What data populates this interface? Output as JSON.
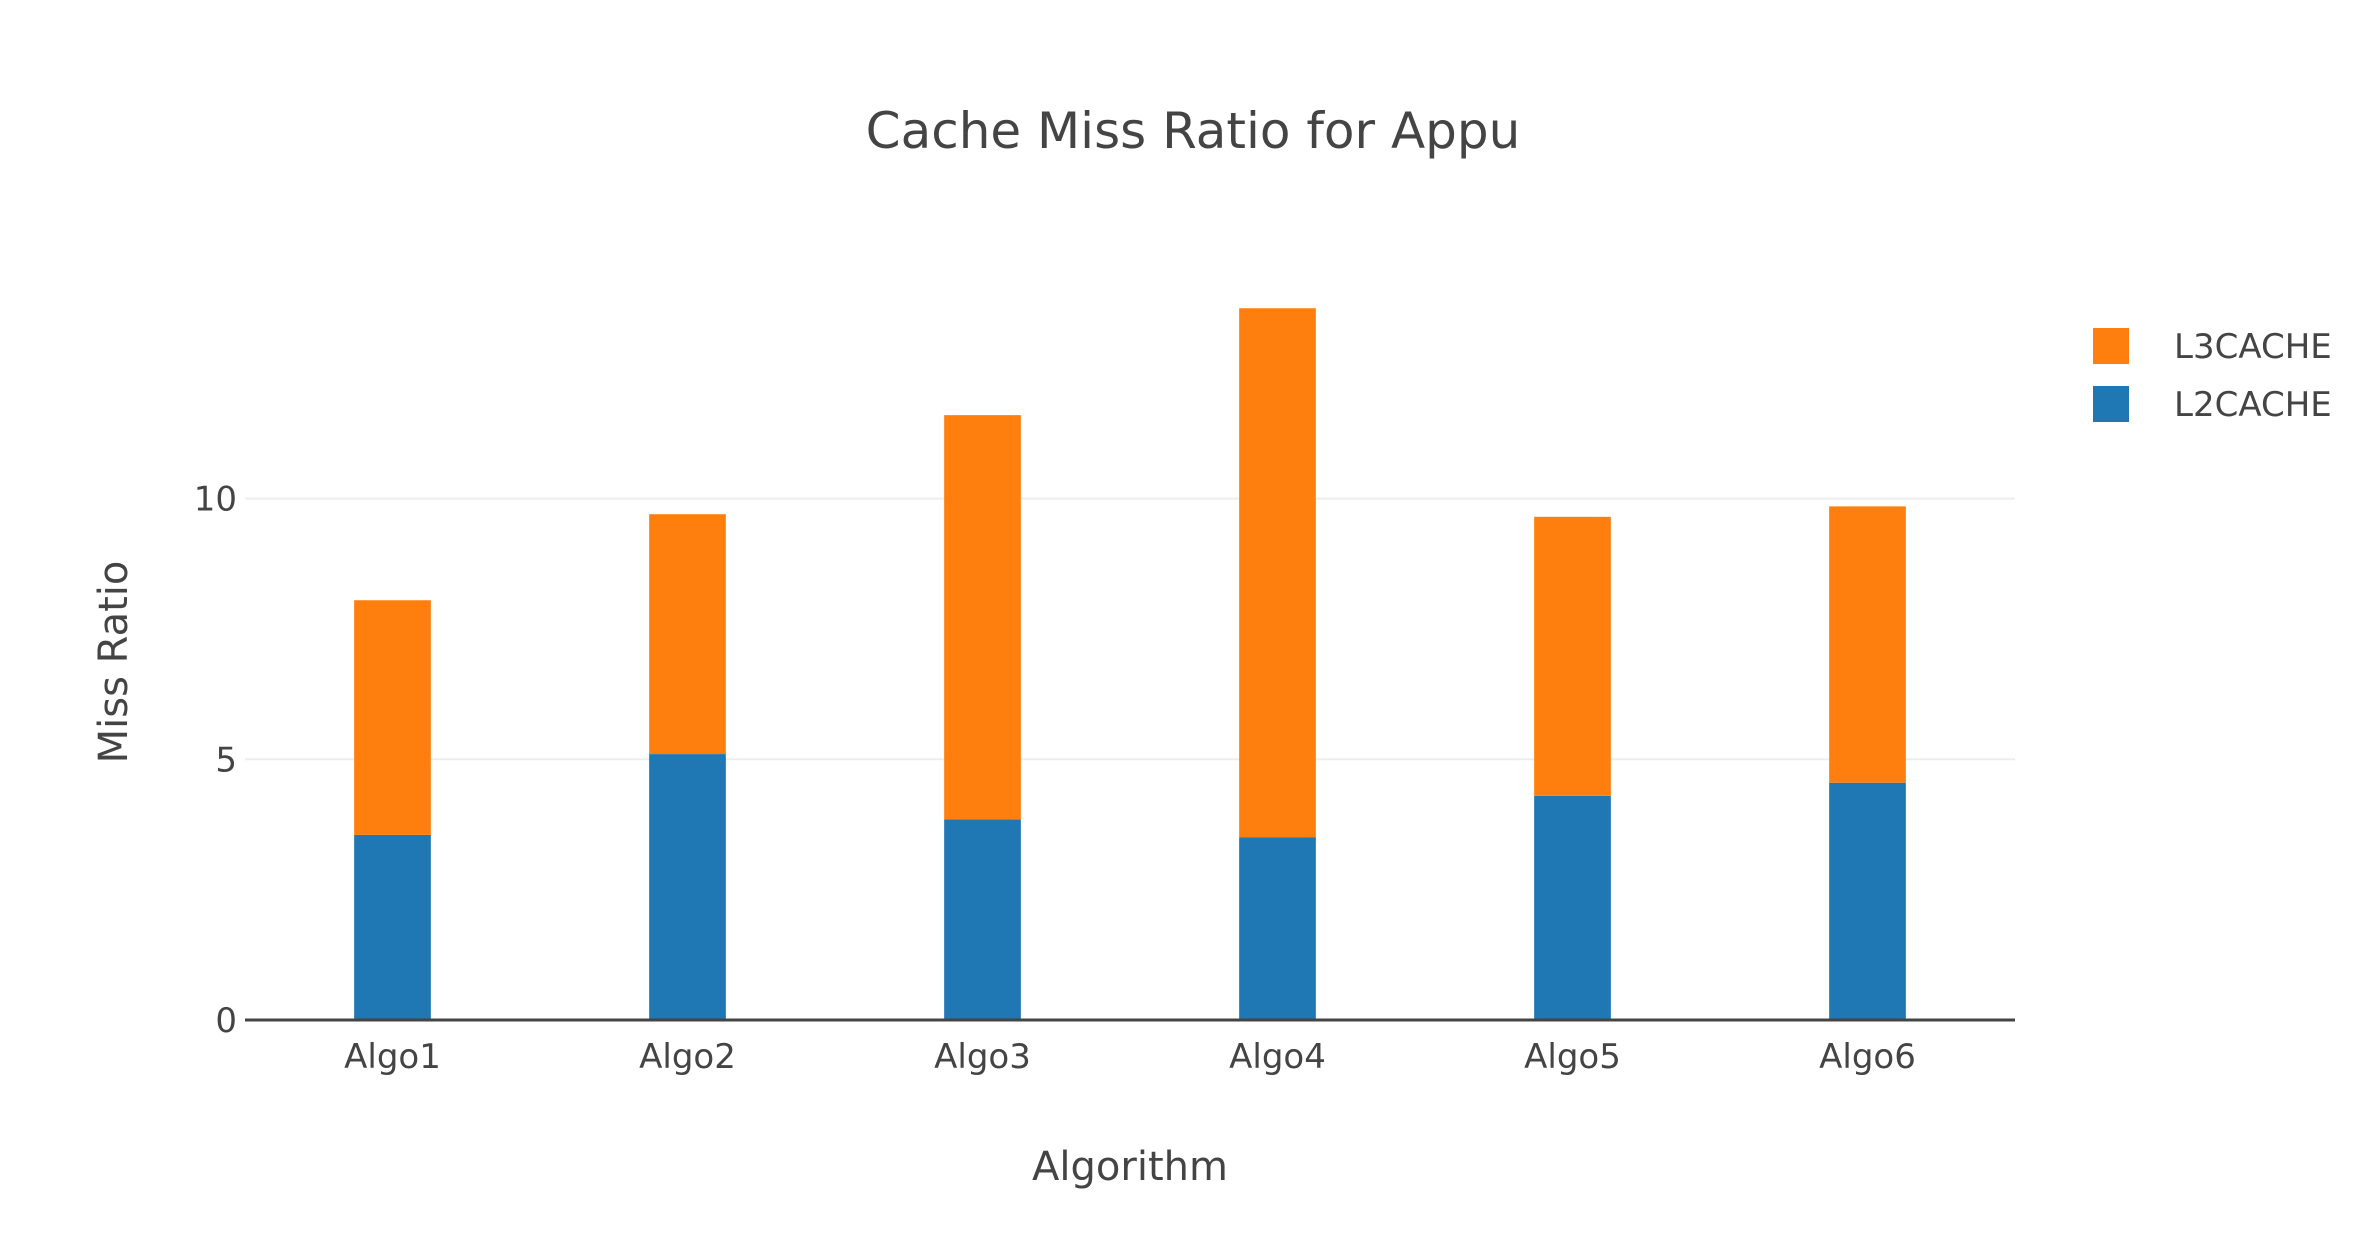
{
  "chart_data": {
    "type": "bar",
    "barmode": "stack",
    "title": "Cache Miss Ratio for Appu",
    "xlabel": "Algorithm",
    "ylabel": "Miss Ratio",
    "categories": [
      "Algo1",
      "Algo2",
      "Algo3",
      "Algo4",
      "Algo5",
      "Algo6"
    ],
    "ylim": [
      0,
      14
    ],
    "yticks": [
      0,
      5,
      10
    ],
    "ytick_labels": [
      "0",
      "5",
      "10"
    ],
    "grid": true,
    "legend_position": "top-right",
    "series": [
      {
        "name": "L2CACHE",
        "color": "#1f77b4",
        "values": [
          3.55,
          5.1,
          3.85,
          3.5,
          4.3,
          4.55
        ]
      },
      {
        "name": "L3CACHE",
        "color": "#ff7f0e",
        "values": [
          4.5,
          4.6,
          7.75,
          10.15,
          5.35,
          5.3
        ]
      }
    ],
    "legend_order": [
      "L3CACHE",
      "L2CACHE"
    ]
  }
}
